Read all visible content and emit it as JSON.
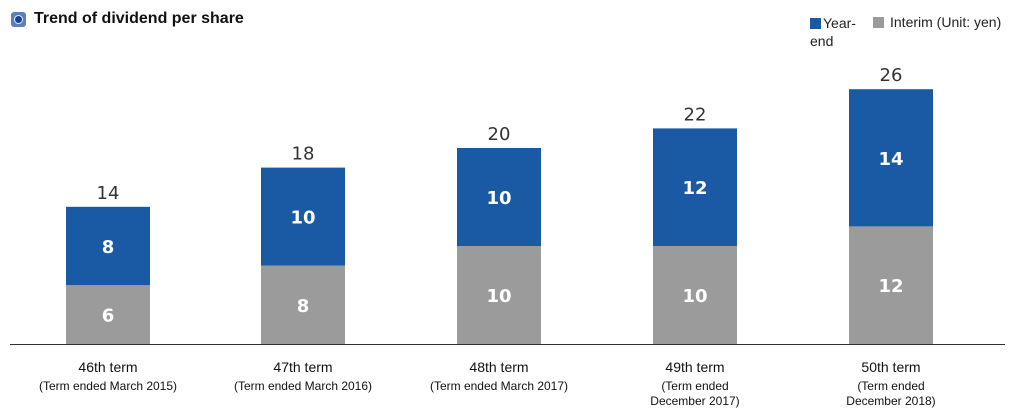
{
  "title": "Trend of dividend per share",
  "legend": {
    "year_end": "Year-end",
    "interim": "Interim (Unit: yen)"
  },
  "colors": {
    "year_end": "#1a5aa4",
    "interim": "#9b9b9b"
  },
  "chart_data": {
    "type": "bar",
    "stacked": true,
    "title": "Trend of dividend per share",
    "unit": "yen",
    "categories": [
      "46th term",
      "47th term",
      "48th term",
      "49th term",
      "50th term"
    ],
    "category_sublabels": [
      [
        "(Term ended March 2015)"
      ],
      [
        "(Term ended March 2016)"
      ],
      [
        "(Term ended March 2017)"
      ],
      [
        "(Term ended",
        "December 2017)"
      ],
      [
        "(Term ended",
        "December 2018)"
      ]
    ],
    "series": [
      {
        "name": "Interim",
        "values": [
          6,
          8,
          10,
          10,
          12
        ]
      },
      {
        "name": "Year-end",
        "values": [
          8,
          10,
          10,
          12,
          14
        ]
      }
    ],
    "totals": [
      14,
      18,
      20,
      22,
      26
    ],
    "ylim": [
      0,
      26
    ],
    "grid": false,
    "legend_position": "top-right"
  }
}
